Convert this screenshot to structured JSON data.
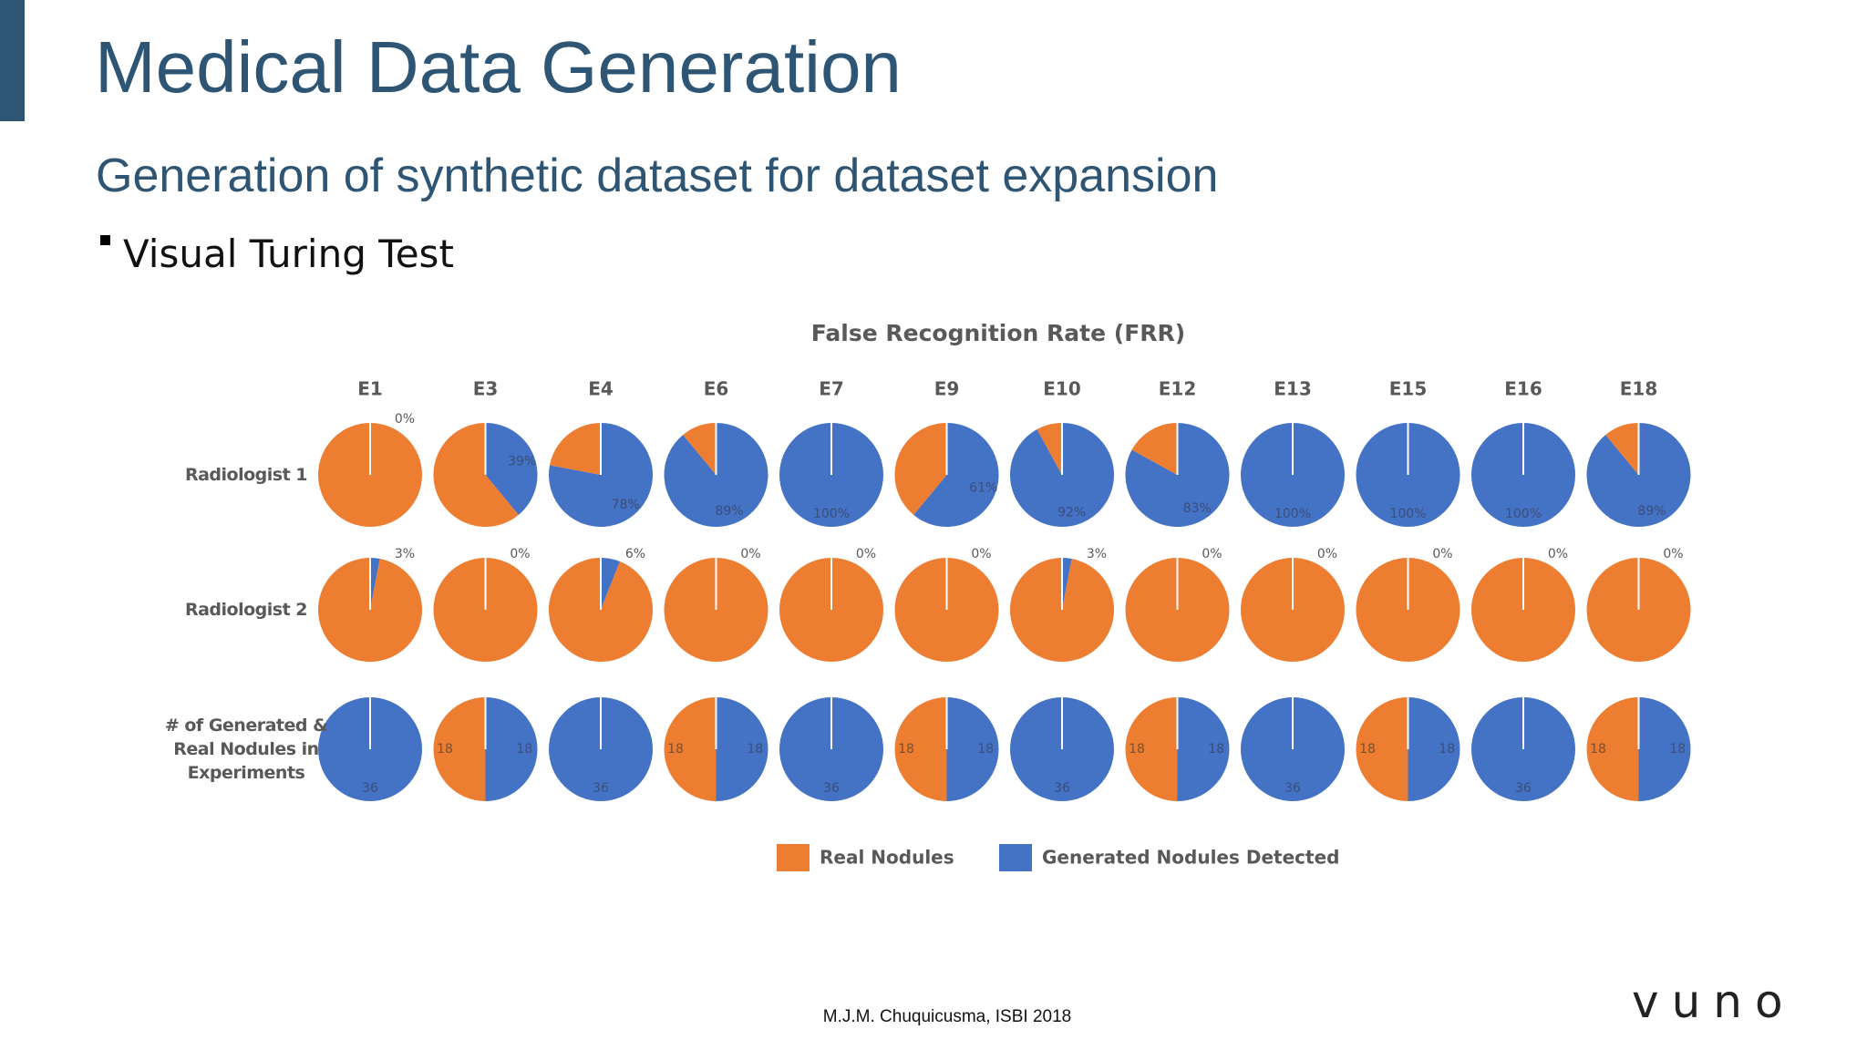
{
  "slide": {
    "title": "Medical Data Generation",
    "subtitle": "Generation of synthetic dataset for dataset expansion",
    "bullet": "Visual Turing Test",
    "footer": "M.J.M. Chuquicusma, ISBI 2018",
    "logo": "vuno"
  },
  "chart_data": {
    "type": "pie",
    "title": "False Recognition Rate (FRR)",
    "categories": [
      "E1",
      "E3",
      "E4",
      "E6",
      "E7",
      "E9",
      "E10",
      "E12",
      "E13",
      "E15",
      "E16",
      "E18"
    ],
    "legend": [
      {
        "name": "Real Nodules",
        "color": "#ed7d31"
      },
      {
        "name": "Generated Nodules Detected",
        "color": "#4472c4"
      }
    ],
    "rows": [
      {
        "name": "Radiologist 1",
        "generated_values": [
          0,
          39,
          78,
          89,
          100,
          61,
          92,
          83,
          100,
          100,
          100,
          89
        ],
        "value_labels": [
          "0%",
          "39%",
          "78%",
          "89%",
          "100%",
          "61%",
          "92%",
          "83%",
          "100%",
          "100%",
          "100%",
          "89%"
        ]
      },
      {
        "name": "Radiologist 2",
        "generated_values": [
          3,
          0,
          6,
          0,
          0,
          0,
          3,
          0,
          0,
          0,
          0,
          0
        ],
        "value_labels": [
          "3%",
          "0%",
          "6%",
          "0%",
          "0%",
          "0%",
          "3%",
          "0%",
          "0%",
          "0%",
          "0%",
          "0%"
        ]
      },
      {
        "name": "# of Generated & Real Nodules in Experiments",
        "real_values": [
          null,
          18,
          null,
          18,
          null,
          18,
          null,
          18,
          null,
          18,
          null,
          18
        ],
        "generated_values": [
          36,
          18,
          36,
          18,
          36,
          18,
          36,
          18,
          36,
          18,
          36,
          18
        ]
      }
    ]
  }
}
